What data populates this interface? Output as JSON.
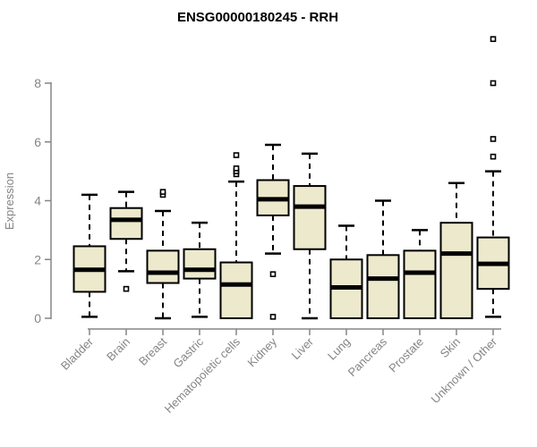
{
  "chart_data": {
    "type": "boxplot",
    "title": "ENSG00000180245 - RRH",
    "ylabel": "Expression",
    "yticks": [
      0,
      2,
      4,
      6,
      8
    ],
    "ylim": [
      0,
      9.7
    ],
    "grid": false,
    "legend": "none",
    "categories": [
      "Bladder",
      "Brain",
      "Breast",
      "Gastric",
      "Hematopoietic cells",
      "Kidney",
      "Liver",
      "Lung",
      "Pancreas",
      "Prostate",
      "Skin",
      "Unknown / Other"
    ],
    "boxes": [
      {
        "category": "Bladder",
        "whisker_low": 0.05,
        "q1": 0.9,
        "median": 1.65,
        "q3": 2.45,
        "whisker_high": 4.2,
        "outliers": []
      },
      {
        "category": "Brain",
        "whisker_low": 1.6,
        "q1": 2.7,
        "median": 3.35,
        "q3": 3.75,
        "whisker_high": 4.3,
        "outliers": [
          1.0
        ]
      },
      {
        "category": "Breast",
        "whisker_low": 0.0,
        "q1": 1.2,
        "median": 1.55,
        "q3": 2.3,
        "whisker_high": 3.65,
        "outliers": [
          4.2,
          4.3
        ]
      },
      {
        "category": "Gastric",
        "whisker_low": 0.05,
        "q1": 1.35,
        "median": 1.65,
        "q3": 2.35,
        "whisker_high": 3.25,
        "outliers": []
      },
      {
        "category": "Hematopoietic cells",
        "whisker_low": 0.0,
        "q1": 0.0,
        "median": 1.15,
        "q3": 1.9,
        "whisker_high": 4.65,
        "outliers": [
          4.9,
          5.0,
          5.1,
          5.55
        ]
      },
      {
        "category": "Kidney",
        "whisker_low": 2.2,
        "q1": 3.5,
        "median": 4.05,
        "q3": 4.7,
        "whisker_high": 5.9,
        "outliers": [
          1.5,
          0.05
        ]
      },
      {
        "category": "Liver",
        "whisker_low": 0.0,
        "q1": 2.35,
        "median": 3.8,
        "q3": 4.5,
        "whisker_high": 5.6,
        "outliers": []
      },
      {
        "category": "Lung",
        "whisker_low": 0.0,
        "q1": 0.0,
        "median": 1.05,
        "q3": 2.0,
        "whisker_high": 3.15,
        "outliers": []
      },
      {
        "category": "Pancreas",
        "whisker_low": 0.0,
        "q1": 0.0,
        "median": 1.35,
        "q3": 2.15,
        "whisker_high": 4.0,
        "outliers": []
      },
      {
        "category": "Prostate",
        "whisker_low": 0.0,
        "q1": 0.0,
        "median": 1.55,
        "q3": 2.3,
        "whisker_high": 3.0,
        "outliers": []
      },
      {
        "category": "Skin",
        "whisker_low": 0.0,
        "q1": 0.0,
        "median": 2.2,
        "q3": 3.25,
        "whisker_high": 4.6,
        "outliers": []
      },
      {
        "category": "Unknown / Other",
        "whisker_low": 0.05,
        "q1": 1.0,
        "median": 1.85,
        "q3": 2.75,
        "whisker_high": 5.0,
        "outliers": [
          5.5,
          6.1,
          8.0,
          9.5
        ]
      }
    ],
    "colors": {
      "box_fill": "#ede9cd",
      "box_stroke": "#000000",
      "median": "#000000",
      "whisker": "#000000",
      "axis": "#858585",
      "tick_label": "#858585",
      "title": "#000000",
      "background": "#ffffff"
    }
  }
}
